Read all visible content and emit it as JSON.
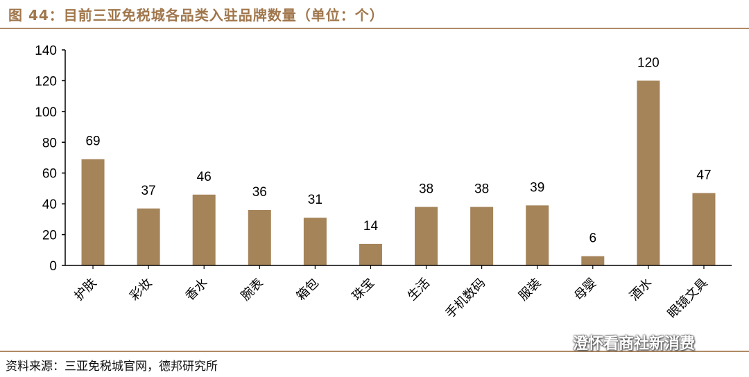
{
  "header": {
    "title": "图 44：目前三亚免税城各品类入驻品牌数量（单位：个）"
  },
  "footer": {
    "source": "资料来源：三亚免税城官网，德邦研究所",
    "watermark": "澄怀看商社新消费",
    "watermark_icon": "wechat-icon"
  },
  "colors": {
    "bar": "#a58459",
    "rule": "#b08a64",
    "axis": "#000000",
    "title": "#a0764b"
  },
  "chart_data": {
    "type": "bar",
    "title": "",
    "xlabel": "",
    "ylabel": "",
    "categories": [
      "护肤",
      "彩妆",
      "香水",
      "腕表",
      "箱包",
      "珠宝",
      "生活",
      "手机数码",
      "服装",
      "母婴",
      "酒水",
      "眼镜文具"
    ],
    "values": [
      69,
      37,
      46,
      36,
      31,
      14,
      38,
      38,
      39,
      6,
      120,
      47
    ],
    "ylim": [
      0,
      140
    ],
    "yticks": [
      0,
      20,
      40,
      60,
      80,
      100,
      120,
      140
    ],
    "grid": false,
    "legend": "none",
    "data_labels": true
  }
}
